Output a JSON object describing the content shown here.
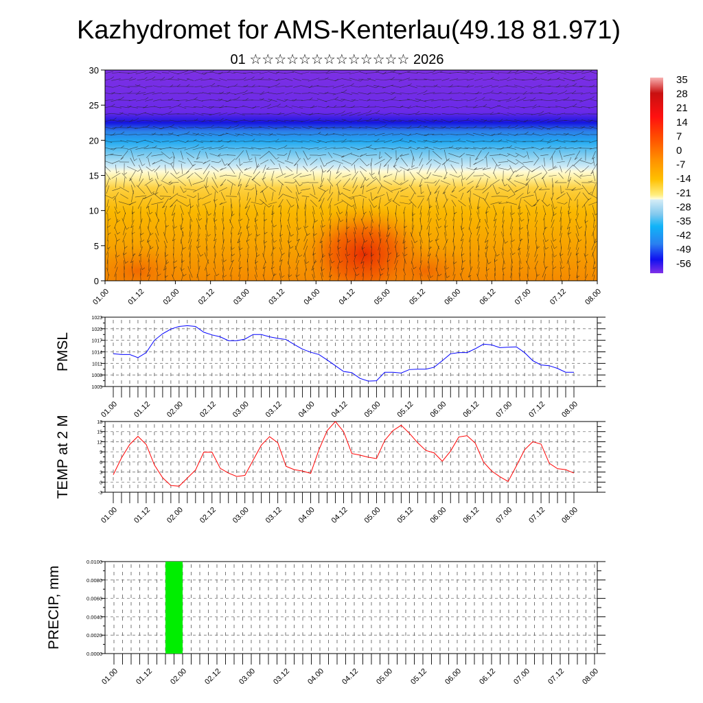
{
  "title": "Kazhydromet for AMS-Kenterlau(49.18 81.971)",
  "subtitle": "01 ☆☆☆☆☆☆☆☆☆☆☆☆☆ 2026",
  "colors": {
    "pmsl_line": "#0000ff",
    "temp_line": "#ff0000",
    "precip_bar": "#00ee00"
  },
  "chart_data": [
    {
      "type": "heatmap",
      "title": "Vertical temperature / wind cross-section",
      "xlabel": "",
      "ylabel": "",
      "x_tick_labels": [
        "01.00",
        "01.12",
        "02.00",
        "02.12",
        "03.00",
        "03.12",
        "04.00",
        "04.12",
        "05.00",
        "05.12",
        "06.00",
        "06.12",
        "07.00",
        "07.12",
        "08.00"
      ],
      "y_ticks": [
        0,
        5,
        10,
        15,
        20,
        25,
        30
      ],
      "ylim": [
        0,
        30
      ],
      "profile_levels": [
        0,
        5,
        10,
        13,
        14.5,
        15.5,
        16.5,
        18,
        20,
        21.5,
        22.5,
        24,
        30
      ],
      "profile_temperature": [
        5,
        2,
        -2,
        -5,
        -10,
        -13,
        -17,
        -24,
        -30,
        -40,
        -52,
        -58,
        -60
      ],
      "warm_core": {
        "time": "04.12",
        "level": 5,
        "temperature": 16
      },
      "colorbar": {
        "labels": [
          "35",
          "28",
          "21",
          "14",
          "7",
          "0",
          "-7",
          "-14",
          "-21",
          "-28",
          "-35",
          "-42",
          "-49",
          "-56"
        ],
        "range": [
          -60,
          38
        ]
      }
    },
    {
      "type": "line",
      "ylabel": "PMSL",
      "ylim": [
        1005,
        1023
      ],
      "y_ticks": [
        "1005",
        "1008",
        "1011",
        "1014",
        "1017",
        "1020",
        "1023"
      ],
      "x_tick_labels": [
        "01.00",
        "01.12",
        "02.00",
        "02.12",
        "03.00",
        "03.12",
        "04.00",
        "04.12",
        "05.00",
        "05.12",
        "06.00",
        "06.12",
        "07.00",
        "07.12",
        "08.00"
      ],
      "step_hours": 3,
      "values": [
        1013.5,
        1013.3,
        1013.3,
        1012.5,
        1013.8,
        1017.0,
        1018.7,
        1019.9,
        1020.6,
        1020.8,
        1020.6,
        1019.1,
        1018.4,
        1017.9,
        1016.9,
        1016.9,
        1017.3,
        1018.5,
        1018.5,
        1017.9,
        1017.5,
        1017.2,
        1015.9,
        1014.7,
        1013.9,
        1013.3,
        1011.9,
        1010.4,
        1008.9,
        1008.6,
        1007.1,
        1006.4,
        1006.5,
        1008.7,
        1008.7,
        1008.5,
        1009.4,
        1009.5,
        1009.5,
        1010.0,
        1011.7,
        1013.5,
        1013.8,
        1013.8,
        1014.8,
        1016.0,
        1015.8,
        1015.1,
        1015.2,
        1015.3,
        1013.8,
        1011.7,
        1010.6,
        1010.4,
        1009.7,
        1008.7,
        1008.7
      ]
    },
    {
      "type": "line",
      "ylabel": "TEMP at 2 M",
      "ylim": [
        -3,
        18
      ],
      "y_ticks": [
        "-3",
        "0",
        "3",
        "6",
        "9",
        "12",
        "15",
        "18"
      ],
      "x_tick_labels": [
        "01.00",
        "01.12",
        "02.00",
        "02.12",
        "03.00",
        "03.12",
        "04.00",
        "04.12",
        "05.00",
        "05.12",
        "06.00",
        "06.12",
        "07.00",
        "07.12",
        "08.00"
      ],
      "step_hours": 3,
      "values": [
        2.2,
        7.2,
        11.2,
        13.6,
        11.2,
        5.1,
        1.3,
        -1.0,
        -1.2,
        1.2,
        3.6,
        8.9,
        8.9,
        4.1,
        2.7,
        1.7,
        2.0,
        6.5,
        11.0,
        13.5,
        11.7,
        4.7,
        3.7,
        3.3,
        2.6,
        9.6,
        15.3,
        18.0,
        15.0,
        8.5,
        8.0,
        7.4,
        7.0,
        12.4,
        15.3,
        16.9,
        14.5,
        11.7,
        9.4,
        8.7,
        6.2,
        9.2,
        13.4,
        13.8,
        11.6,
        6.0,
        3.3,
        1.6,
        0.2,
        4.8,
        9.6,
        12.0,
        11.3,
        5.6,
        4.0,
        3.7,
        2.7
      ]
    },
    {
      "type": "bar",
      "ylabel": "PRECIP, mm",
      "ylim": [
        0,
        0.01
      ],
      "y_ticks": [
        "0.0000",
        "0.0020",
        "0.0040",
        "0.0060",
        "0.0080",
        "0.0100"
      ],
      "x_tick_labels": [
        "01.00",
        "01.12",
        "02.00",
        "02.12",
        "03.00",
        "03.12",
        "04.00",
        "04.12",
        "05.00",
        "05.12",
        "06.00",
        "06.12",
        "07.00",
        "07.12",
        "08.00"
      ],
      "bars": [
        {
          "start": "01.18",
          "end": "02.00",
          "value": 0.01
        }
      ]
    }
  ]
}
